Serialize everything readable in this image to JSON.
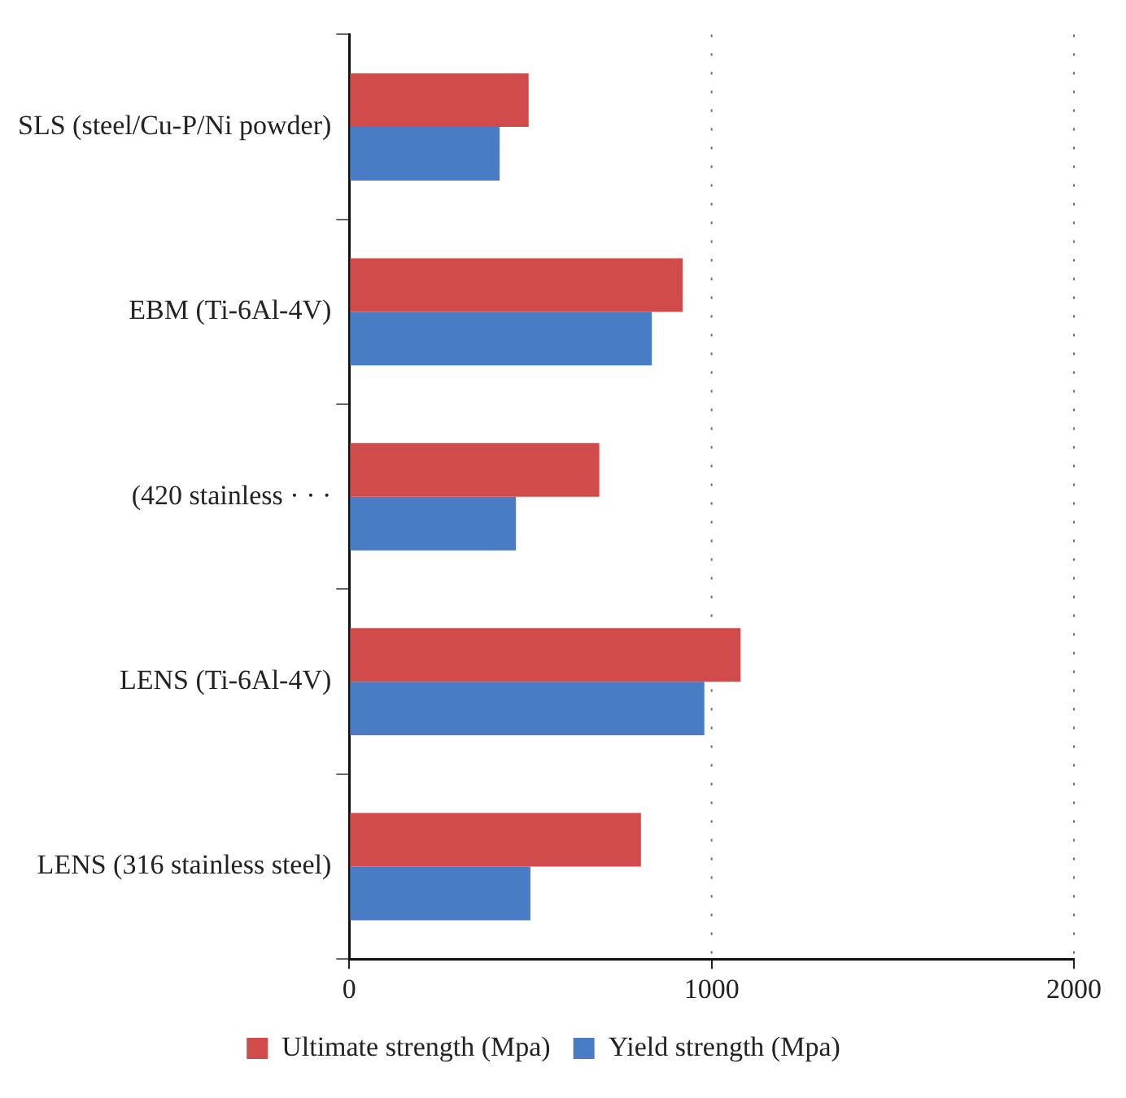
{
  "chart_data": {
    "type": "bar",
    "orientation": "horizontal",
    "categories": [
      "SLS (steel/Cu-P/Ni powder)",
      "EBM (Ti-6Al-4V)",
      "(420 stainless · · ·",
      "LENS (Ti-6Al-4V)",
      "LENS (316 stainless steel)"
    ],
    "series": [
      {
        "name": "Ultimate strength (Mpa)",
        "color": "#d24b4b",
        "values": [
          495,
          920,
          690,
          1080,
          805
        ]
      },
      {
        "name": "Yield strength (Mpa)",
        "color": "#4a7cc6",
        "values": [
          415,
          835,
          460,
          980,
          500
        ]
      }
    ],
    "xlim": [
      0,
      2000
    ],
    "xticks": [
      0,
      1000,
      2000
    ],
    "grid": "x",
    "legend": "bottom"
  }
}
